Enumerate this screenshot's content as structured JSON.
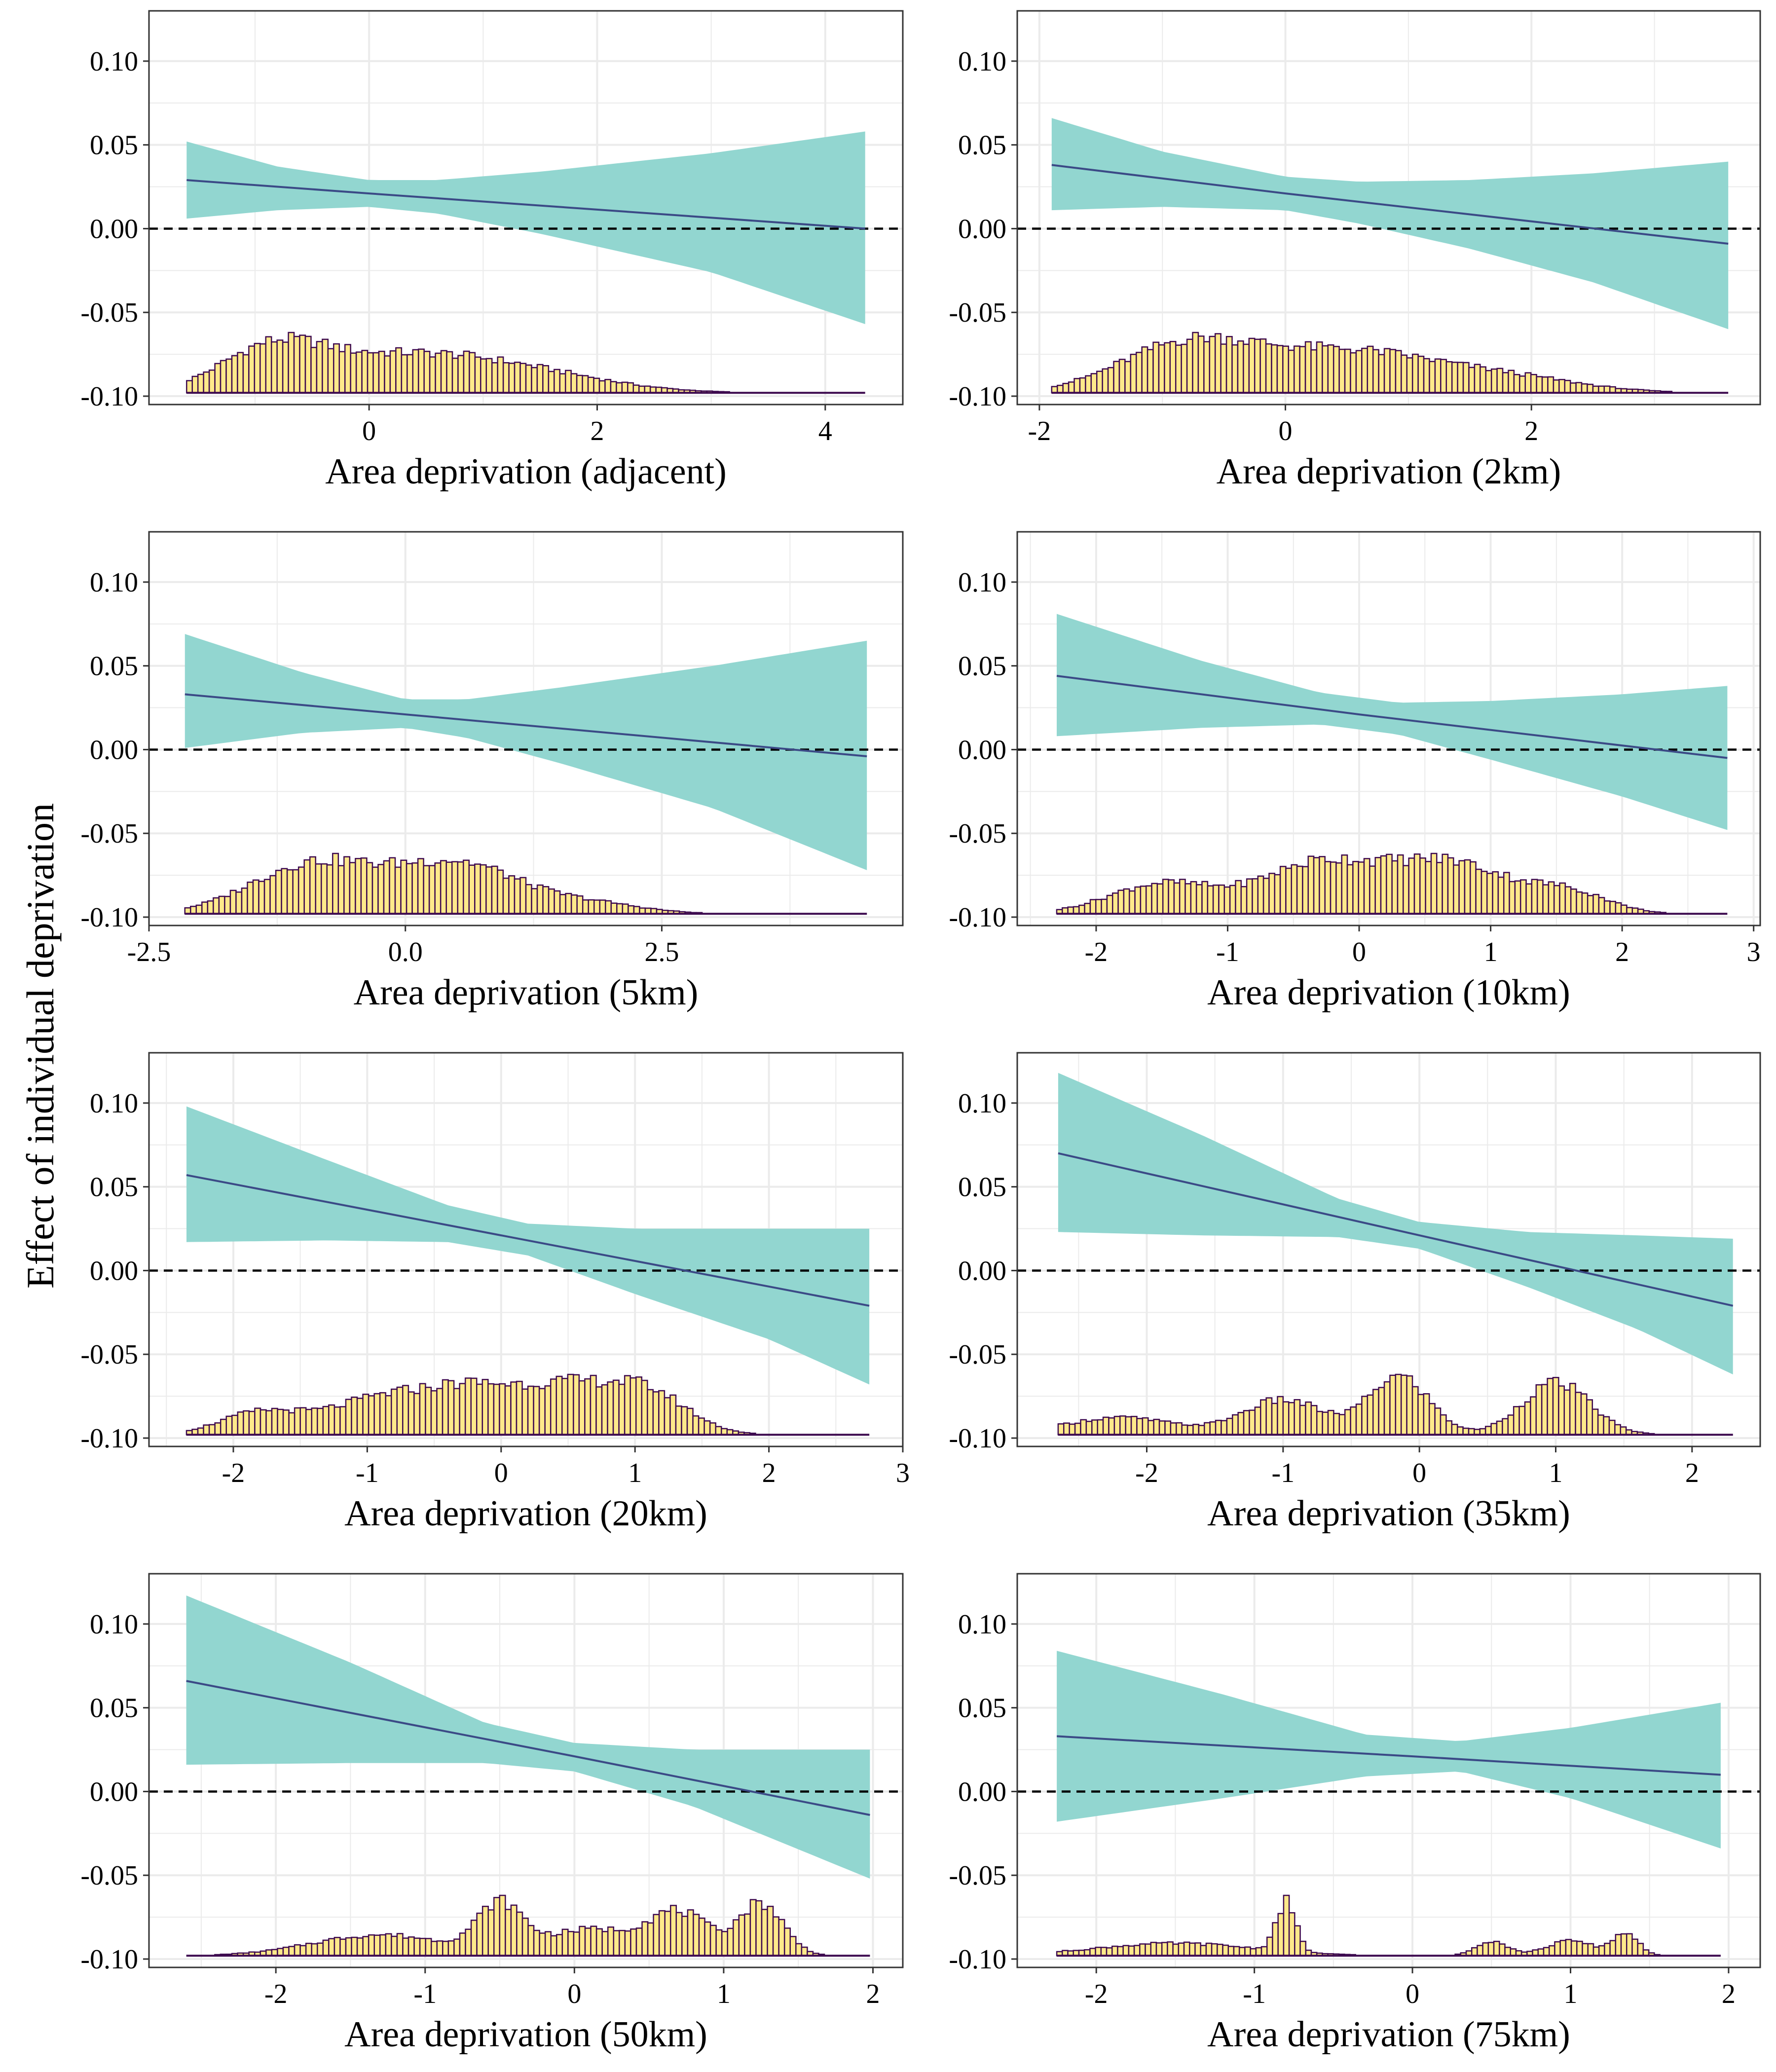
{
  "figure": {
    "ylabel": "Effect of individual deprivation",
    "colors": {
      "ribbon": "#92d6d0",
      "line": "#3b4a86",
      "zero_line": "#000000",
      "hist_fill": "#ffe98a",
      "hist_edge": "#3d0a4f",
      "grid": "#ebebeb",
      "panel_border": "#333333"
    }
  },
  "chart_data": [
    {
      "type": "area",
      "xlabel": "Area deprivation (adjacent)",
      "ylabel": "Effect of individual deprivation",
      "ylim": [
        -0.105,
        0.13
      ],
      "yticks": [
        -0.1,
        -0.05,
        0.0,
        0.05,
        0.1
      ],
      "ytick_labels": [
        "-0.10",
        "-0.05",
        "0.00",
        "0.05",
        "0.10"
      ],
      "xlim": [
        -1.93,
        4.68
      ],
      "xticks": [
        0,
        2,
        4
      ],
      "xtick_labels": [
        "0",
        "2",
        "4"
      ],
      "x_range": [
        -1.6,
        4.35
      ],
      "estimate": {
        "x": [
          -1.6,
          0.0,
          4.35
        ],
        "y": [
          0.029,
          0.021,
          0.0
        ]
      },
      "ci_upper": {
        "x": [
          -1.6,
          -0.8,
          0.0,
          0.6,
          1.5,
          3.0,
          4.35
        ],
        "y": [
          0.052,
          0.037,
          0.029,
          0.029,
          0.034,
          0.045,
          0.058
        ]
      },
      "ci_lower": {
        "x": [
          -1.6,
          -0.8,
          0.0,
          0.6,
          1.5,
          3.0,
          4.35
        ],
        "y": [
          0.006,
          0.011,
          0.013,
          0.009,
          -0.003,
          -0.026,
          -0.057
        ]
      },
      "zero_line": 0,
      "histogram": {
        "bins": 120,
        "baseline": -0.098,
        "max_height": 0.036,
        "components": [
          {
            "w": 1.0,
            "mu": -0.85,
            "sd": 0.45
          },
          {
            "w": 0.9,
            "mu": 0.3,
            "sd": 0.8
          },
          {
            "w": 0.35,
            "mu": 1.5,
            "sd": 0.7
          }
        ]
      }
    },
    {
      "type": "area",
      "xlabel": "Area deprivation (2km)",
      "ylabel": "Effect of individual deprivation",
      "ylim": [
        -0.105,
        0.13
      ],
      "yticks": [
        -0.1,
        -0.05,
        0.0,
        0.05,
        0.1
      ],
      "ytick_labels": [
        "-0.10",
        "-0.05",
        "0.00",
        "0.05",
        "0.10"
      ],
      "xlim": [
        -2.18,
        3.86
      ],
      "xticks": [
        -2,
        0,
        2
      ],
      "xtick_labels": [
        "-2",
        "0",
        "2"
      ],
      "x_range": [
        -1.9,
        3.6
      ],
      "estimate": {
        "x": [
          -1.9,
          0.0,
          3.6
        ],
        "y": [
          0.038,
          0.021,
          -0.009
        ]
      },
      "ci_upper": {
        "x": [
          -1.9,
          -1.0,
          0.0,
          0.6,
          1.5,
          2.5,
          3.6
        ],
        "y": [
          0.066,
          0.046,
          0.031,
          0.028,
          0.029,
          0.033,
          0.04
        ]
      },
      "ci_lower": {
        "x": [
          -1.9,
          -1.0,
          0.0,
          0.6,
          1.5,
          2.5,
          3.6
        ],
        "y": [
          0.011,
          0.013,
          0.011,
          0.003,
          -0.012,
          -0.032,
          -0.06
        ]
      },
      "zero_line": 0,
      "histogram": {
        "bins": 120,
        "baseline": -0.098,
        "max_height": 0.036,
        "components": [
          {
            "w": 1.0,
            "mu": -0.8,
            "sd": 0.55
          },
          {
            "w": 0.85,
            "mu": 0.5,
            "sd": 0.7
          },
          {
            "w": 0.3,
            "mu": 1.8,
            "sd": 0.6
          }
        ]
      }
    },
    {
      "type": "area",
      "xlabel": "Area deprivation (5km)",
      "ylabel": "Effect of individual deprivation",
      "ylim": [
        -0.105,
        0.13
      ],
      "yticks": [
        -0.1,
        -0.05,
        0.0,
        0.05,
        0.1
      ],
      "ytick_labels": [
        "-0.10",
        "-0.05",
        "0.00",
        "0.05",
        "0.10"
      ],
      "xlim": [
        -2.5,
        4.85
      ],
      "xticks": [
        -2.5,
        0.0,
        2.5
      ],
      "xtick_labels": [
        "-2.5",
        "0.0",
        "2.5"
      ],
      "x_range": [
        -2.15,
        4.5
      ],
      "estimate": {
        "x": [
          -2.15,
          0.0,
          4.5
        ],
        "y": [
          0.033,
          0.021,
          -0.004
        ]
      },
      "ci_upper": {
        "x": [
          -2.15,
          -1.0,
          0.0,
          0.6,
          1.5,
          3.0,
          4.5
        ],
        "y": [
          0.069,
          0.046,
          0.03,
          0.03,
          0.037,
          0.05,
          0.065
        ]
      },
      "ci_lower": {
        "x": [
          -2.15,
          -1.0,
          0.0,
          0.6,
          1.5,
          3.0,
          4.5
        ],
        "y": [
          0.001,
          0.01,
          0.013,
          0.007,
          -0.008,
          -0.035,
          -0.072
        ]
      },
      "zero_line": 0,
      "histogram": {
        "bins": 120,
        "baseline": -0.098,
        "max_height": 0.036,
        "components": [
          {
            "w": 1.0,
            "mu": -0.9,
            "sd": 0.6
          },
          {
            "w": 1.0,
            "mu": 0.5,
            "sd": 0.6
          },
          {
            "w": 0.2,
            "mu": 1.8,
            "sd": 0.5
          }
        ]
      }
    },
    {
      "type": "area",
      "xlabel": "Area deprivation (10km)",
      "ylabel": "Effect of individual deprivation",
      "ylim": [
        -0.105,
        0.13
      ],
      "yticks": [
        -0.1,
        -0.05,
        0.0,
        0.05,
        0.1
      ],
      "ytick_labels": [
        "-0.10",
        "-0.05",
        "0.00",
        "0.05",
        "0.10"
      ],
      "xlim": [
        -2.6,
        3.05
      ],
      "xticks": [
        -2,
        -1,
        0,
        1,
        2,
        3
      ],
      "xtick_labels": [
        "-2",
        "-1",
        "0",
        "1",
        "2",
        "3"
      ],
      "x_range": [
        -2.3,
        2.8
      ],
      "estimate": {
        "x": [
          -2.3,
          0.0,
          2.8
        ],
        "y": [
          0.044,
          0.021,
          -0.005
        ]
      },
      "ci_upper": {
        "x": [
          -2.3,
          -1.2,
          -0.3,
          0.3,
          1.0,
          2.0,
          2.8
        ],
        "y": [
          0.081,
          0.053,
          0.034,
          0.028,
          0.029,
          0.033,
          0.038
        ]
      },
      "ci_lower": {
        "x": [
          -2.3,
          -1.2,
          -0.3,
          0.3,
          1.0,
          2.0,
          2.8
        ],
        "y": [
          0.008,
          0.013,
          0.015,
          0.009,
          -0.006,
          -0.028,
          -0.048
        ]
      },
      "zero_line": 0,
      "histogram": {
        "bins": 120,
        "baseline": -0.098,
        "max_height": 0.036,
        "components": [
          {
            "w": 0.6,
            "mu": -1.5,
            "sd": 0.4
          },
          {
            "w": 1.0,
            "mu": -0.3,
            "sd": 0.45
          },
          {
            "w": 1.0,
            "mu": 0.7,
            "sd": 0.45
          },
          {
            "w": 0.4,
            "mu": 1.6,
            "sd": 0.3
          }
        ]
      }
    },
    {
      "type": "area",
      "xlabel": "Area deprivation (20km)",
      "ylabel": "Effect of individual deprivation",
      "ylim": [
        -0.105,
        0.13
      ],
      "yticks": [
        -0.1,
        -0.05,
        0.0,
        0.05,
        0.1
      ],
      "ytick_labels": [
        "-0.10",
        "-0.05",
        "0.00",
        "0.05",
        "0.10"
      ],
      "xlim": [
        -2.63,
        3.0
      ],
      "xticks": [
        -2,
        -1,
        0,
        1,
        2,
        3
      ],
      "xtick_labels": [
        "-2",
        "-1",
        "0",
        "1",
        "2",
        "3"
      ],
      "x_range": [
        -2.35,
        2.75
      ],
      "estimate": {
        "x": [
          -2.35,
          0.0,
          2.75
        ],
        "y": [
          0.057,
          0.021,
          -0.021
        ]
      },
      "ci_upper": {
        "x": [
          -2.35,
          -1.3,
          -0.4,
          0.2,
          1.0,
          2.0,
          2.75
        ],
        "y": [
          0.098,
          0.066,
          0.039,
          0.028,
          0.025,
          0.025,
          0.025
        ]
      },
      "ci_lower": {
        "x": [
          -2.35,
          -1.3,
          -0.4,
          0.2,
          1.0,
          2.0,
          2.75
        ],
        "y": [
          0.017,
          0.018,
          0.017,
          0.009,
          -0.014,
          -0.041,
          -0.068
        ]
      },
      "zero_line": 0,
      "histogram": {
        "bins": 120,
        "baseline": -0.098,
        "max_height": 0.036,
        "components": [
          {
            "w": 0.5,
            "mu": -1.8,
            "sd": 0.3
          },
          {
            "w": 0.8,
            "mu": -0.9,
            "sd": 0.4
          },
          {
            "w": 0.9,
            "mu": -0.2,
            "sd": 0.35
          },
          {
            "w": 1.0,
            "mu": 0.5,
            "sd": 0.35
          },
          {
            "w": 0.9,
            "mu": 1.1,
            "sd": 0.3
          }
        ]
      }
    },
    {
      "type": "area",
      "xlabel": "Area deprivation (35km)",
      "ylabel": "Effect of individual deprivation",
      "ylim": [
        -0.105,
        0.13
      ],
      "yticks": [
        -0.1,
        -0.05,
        0.0,
        0.05,
        0.1
      ],
      "ytick_labels": [
        "-0.10",
        "-0.05",
        "0.00",
        "0.05",
        "0.10"
      ],
      "xlim": [
        -2.95,
        2.5
      ],
      "xticks": [
        -2,
        -1,
        0,
        1,
        2
      ],
      "xtick_labels": [
        "-2",
        "-1",
        "0",
        "1",
        "2"
      ],
      "x_range": [
        -2.65,
        2.3
      ],
      "estimate": {
        "x": [
          -2.65,
          0.0,
          2.3
        ],
        "y": [
          0.07,
          0.021,
          -0.021
        ]
      },
      "ci_upper": {
        "x": [
          -2.65,
          -1.6,
          -0.6,
          0.0,
          0.8,
          1.6,
          2.3
        ],
        "y": [
          0.118,
          0.081,
          0.043,
          0.029,
          0.023,
          0.021,
          0.019
        ]
      },
      "ci_lower": {
        "x": [
          -2.65,
          -1.6,
          -0.6,
          0.0,
          0.8,
          1.6,
          2.3
        ],
        "y": [
          0.023,
          0.021,
          0.02,
          0.013,
          -0.01,
          -0.035,
          -0.062
        ]
      },
      "zero_line": 0,
      "histogram": {
        "bins": 120,
        "baseline": -0.098,
        "max_height": 0.036,
        "components": [
          {
            "w": 0.3,
            "mu": -2.2,
            "sd": 0.4
          },
          {
            "w": 0.6,
            "mu": -1.0,
            "sd": 0.3
          },
          {
            "w": 1.0,
            "mu": -0.15,
            "sd": 0.22
          },
          {
            "w": 0.9,
            "mu": 1.0,
            "sd": 0.25
          }
        ]
      }
    },
    {
      "type": "area",
      "xlabel": "Area deprivation (50km)",
      "ylabel": "Effect of individual deprivation",
      "ylim": [
        -0.105,
        0.13
      ],
      "yticks": [
        -0.1,
        -0.05,
        0.0,
        0.05,
        0.1
      ],
      "ytick_labels": [
        "-0.10",
        "-0.05",
        "0.00",
        "0.05",
        "0.10"
      ],
      "xlim": [
        -2.85,
        2.2
      ],
      "xticks": [
        -2,
        -1,
        0,
        1,
        2
      ],
      "xtick_labels": [
        "-2",
        "-1",
        "0",
        "1",
        "2"
      ],
      "x_range": [
        -2.6,
        1.98
      ],
      "estimate": {
        "x": [
          -2.6,
          0.0,
          1.98
        ],
        "y": [
          0.066,
          0.021,
          -0.014
        ]
      },
      "ci_upper": {
        "x": [
          -2.6,
          -1.5,
          -0.6,
          0.0,
          0.8,
          1.98
        ],
        "y": [
          0.117,
          0.077,
          0.041,
          0.029,
          0.025,
          0.025
        ]
      },
      "ci_lower": {
        "x": [
          -2.6,
          -1.5,
          -0.6,
          0.0,
          0.8,
          1.98
        ],
        "y": [
          0.016,
          0.017,
          0.017,
          0.012,
          -0.009,
          -0.052
        ]
      },
      "zero_line": 0,
      "histogram": {
        "bins": 120,
        "baseline": -0.098,
        "max_height": 0.036,
        "components": [
          {
            "w": 0.4,
            "mu": -1.3,
            "sd": 0.45
          },
          {
            "w": 0.9,
            "mu": -0.5,
            "sd": 0.15
          },
          {
            "w": 0.5,
            "mu": 0.1,
            "sd": 0.3
          },
          {
            "w": 0.8,
            "mu": 0.7,
            "sd": 0.2
          },
          {
            "w": 1.0,
            "mu": 1.25,
            "sd": 0.15
          }
        ]
      }
    },
    {
      "type": "area",
      "xlabel": "Area deprivation (75km)",
      "ylabel": "Effect of individual deprivation",
      "ylim": [
        -0.105,
        0.13
      ],
      "yticks": [
        -0.1,
        -0.05,
        0.0,
        0.05,
        0.1
      ],
      "ytick_labels": [
        "-0.10",
        "-0.05",
        "0.00",
        "0.05",
        "0.10"
      ],
      "xlim": [
        -2.5,
        2.2
      ],
      "xticks": [
        -2,
        -1,
        0,
        1,
        2
      ],
      "xtick_labels": [
        "-2",
        "-1",
        "0",
        "1",
        "2"
      ],
      "x_range": [
        -2.25,
        1.95
      ],
      "estimate": {
        "x": [
          -2.25,
          0.0,
          1.95
        ],
        "y": [
          0.033,
          0.021,
          0.01
        ]
      },
      "ci_upper": {
        "x": [
          -2.25,
          -1.2,
          -0.3,
          0.3,
          1.0,
          1.95
        ],
        "y": [
          0.084,
          0.058,
          0.034,
          0.03,
          0.038,
          0.053
        ]
      },
      "ci_lower": {
        "x": [
          -2.25,
          -1.2,
          -0.3,
          0.3,
          1.0,
          1.95
        ],
        "y": [
          -0.018,
          -0.004,
          0.009,
          0.012,
          -0.004,
          -0.034
        ]
      },
      "zero_line": 0,
      "histogram": {
        "bins": 120,
        "baseline": -0.098,
        "max_height": 0.036,
        "components": [
          {
            "w": 0.25,
            "mu": -1.5,
            "sd": 0.5
          },
          {
            "w": 1.0,
            "mu": -0.8,
            "sd": 0.06
          },
          {
            "w": 0.3,
            "mu": 0.5,
            "sd": 0.1
          },
          {
            "w": 0.3,
            "mu": 1.0,
            "sd": 0.15
          },
          {
            "w": 0.45,
            "mu": 1.35,
            "sd": 0.08
          }
        ]
      }
    }
  ]
}
